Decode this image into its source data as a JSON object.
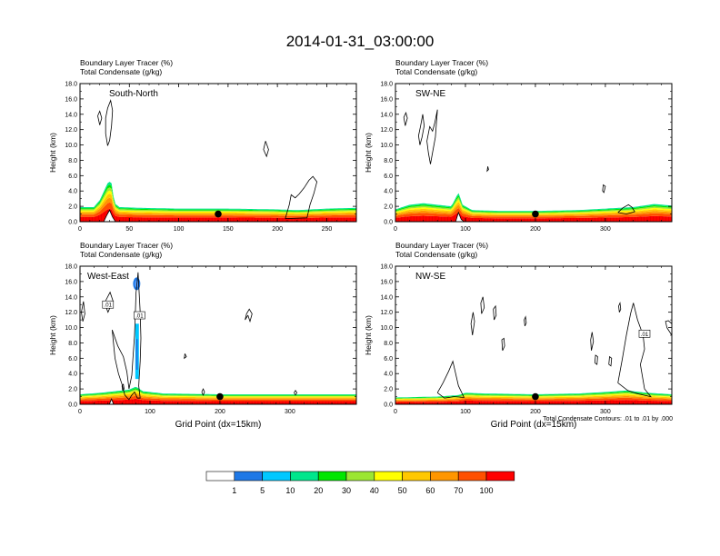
{
  "title": "2014-01-31_03:00:00",
  "colors": {
    "fill_levels": [
      "#ffffff",
      "#1e78e6",
      "#00c8ff",
      "#00e68c",
      "#00e600",
      "#9be632",
      "#ffff00",
      "#ffc800",
      "#ff9600",
      "#ff5000",
      "#ff0000"
    ],
    "frame": "#000000",
    "contour": "#000000"
  },
  "colorbar": {
    "labels": [
      "1",
      "5",
      "10",
      "20",
      "30",
      "40",
      "50",
      "60",
      "70",
      "100"
    ]
  },
  "contour_note": "Total Condensate Contours: .01 to .01 by .000",
  "chart_data": [
    {
      "type": "heatmap",
      "id": "south-north",
      "label": "South-North",
      "subtitle1": "Boundary Layer Tracer   (%)",
      "subtitle2": "Total Condensate   (g/kg)",
      "ylabel": "Height (km)",
      "xlabel": "",
      "xlim": [
        0,
        280
      ],
      "ylim": [
        0,
        18
      ],
      "xticks": [
        0,
        50,
        100,
        150,
        200,
        250
      ],
      "yticks": [
        "0.0",
        "2.0",
        "4.0",
        "6.0",
        "8.0",
        "10.0",
        "12.0",
        "14.0",
        "16.0",
        "18.0"
      ],
      "marker": {
        "x": 140,
        "y": 1.0
      },
      "terrain": [
        [
          0,
          0
        ],
        [
          24,
          0
        ],
        [
          27,
          0.8
        ],
        [
          30,
          1.5
        ],
        [
          33,
          0.6
        ],
        [
          36,
          0
        ],
        [
          280,
          0
        ]
      ],
      "profile": [
        [
          0,
          1.9
        ],
        [
          14,
          1.9
        ],
        [
          20,
          2.8
        ],
        [
          25,
          4.2
        ],
        [
          29,
          5.3
        ],
        [
          32,
          5.0
        ],
        [
          35,
          2.4
        ],
        [
          40,
          1.9
        ],
        [
          60,
          1.8
        ],
        [
          100,
          1.7
        ],
        [
          150,
          1.7
        ],
        [
          200,
          1.6
        ],
        [
          220,
          1.5
        ],
        [
          250,
          1.7
        ],
        [
          280,
          1.8
        ]
      ],
      "contours": [
        [
          [
            18,
            13.8
          ],
          [
            20,
            12.6
          ],
          [
            22,
            13.5
          ],
          [
            20,
            14.4
          ],
          [
            18,
            13.8
          ]
        ],
        [
          [
            28,
            9.9
          ],
          [
            26,
            11.5
          ],
          [
            26,
            13.5
          ],
          [
            28,
            14.8
          ],
          [
            31,
            15.8
          ],
          [
            33,
            14.5
          ],
          [
            32,
            12.5
          ],
          [
            30,
            10.6
          ],
          [
            28,
            9.9
          ]
        ],
        [
          [
            188,
            10.5
          ],
          [
            186,
            9.4
          ],
          [
            189,
            8.5
          ],
          [
            191,
            9.4
          ],
          [
            188,
            10.5
          ]
        ],
        [
          [
            208,
            0.4
          ],
          [
            212,
            2.2
          ],
          [
            214,
            3.5
          ],
          [
            218,
            3.1
          ],
          [
            222,
            3.6
          ],
          [
            227,
            4.4
          ],
          [
            232,
            5.4
          ],
          [
            236,
            5.9
          ],
          [
            240,
            5.2
          ],
          [
            237,
            3.7
          ],
          [
            233,
            2.2
          ],
          [
            230,
            0.5
          ],
          [
            208,
            0.4
          ]
        ]
      ],
      "boxes": []
    },
    {
      "type": "heatmap",
      "id": "sw-ne",
      "label": "SW-NE",
      "subtitle1": "Boundary Layer Tracer   (%)",
      "subtitle2": "Total Condensate   (g/kg)",
      "ylabel": "Height (km)",
      "xlabel": "",
      "xlim": [
        0,
        395
      ],
      "ylim": [
        0,
        18
      ],
      "xticks": [
        0,
        100,
        200,
        300
      ],
      "yticks": [
        "0.0",
        "2.0",
        "4.0",
        "6.0",
        "8.0",
        "10.0",
        "12.0",
        "14.0",
        "16.0",
        "18.0"
      ],
      "marker": {
        "x": 200,
        "y": 1.0
      },
      "terrain": [
        [
          0,
          0
        ],
        [
          86,
          0
        ],
        [
          90,
          1.2
        ],
        [
          94,
          0.3
        ],
        [
          98,
          0
        ],
        [
          395,
          0
        ]
      ],
      "profile": [
        [
          0,
          1.6
        ],
        [
          20,
          2.2
        ],
        [
          40,
          2.4
        ],
        [
          60,
          2.2
        ],
        [
          80,
          2.0
        ],
        [
          90,
          3.8
        ],
        [
          96,
          2.2
        ],
        [
          110,
          1.5
        ],
        [
          150,
          1.4
        ],
        [
          200,
          1.4
        ],
        [
          260,
          1.5
        ],
        [
          300,
          1.7
        ],
        [
          340,
          1.9
        ],
        [
          370,
          2.3
        ],
        [
          395,
          2.1
        ]
      ],
      "contours": [
        [
          [
            14,
            12.5
          ],
          [
            12,
            13.6
          ],
          [
            15,
            14.2
          ],
          [
            17,
            13.5
          ],
          [
            14,
            12.5
          ]
        ],
        [
          [
            35,
            10.0
          ],
          [
            33,
            11.2
          ],
          [
            36,
            12.5
          ],
          [
            39,
            14.0
          ],
          [
            41,
            12.5
          ],
          [
            38,
            11.0
          ],
          [
            35,
            10.0
          ]
        ],
        [
          [
            47,
            9.0
          ],
          [
            45,
            10.5
          ],
          [
            49,
            12.4
          ],
          [
            53,
            11.8
          ],
          [
            56,
            12.8
          ],
          [
            60,
            14.6
          ],
          [
            57,
            11.0
          ],
          [
            53,
            9.0
          ],
          [
            50,
            7.5
          ],
          [
            47,
            9.0
          ]
        ],
        [
          [
            132,
            7.2
          ],
          [
            131,
            6.6
          ],
          [
            133,
            6.8
          ],
          [
            132,
            7.2
          ]
        ],
        [
          [
            296,
            4.0
          ],
          [
            297,
            4.8
          ],
          [
            300,
            4.6
          ],
          [
            298,
            3.8
          ],
          [
            296,
            4.0
          ]
        ],
        [
          [
            318,
            1.2
          ],
          [
            325,
            1.8
          ],
          [
            333,
            2.2
          ],
          [
            338,
            1.9
          ],
          [
            342,
            1.3
          ],
          [
            330,
            1.0
          ],
          [
            318,
            1.2
          ]
        ]
      ],
      "boxes": []
    },
    {
      "type": "heatmap",
      "id": "west-east",
      "label": "West-East",
      "subtitle1": "Boundary Layer Tracer   (%)",
      "subtitle2": "Total Condensate   (g/kg)",
      "ylabel": "Height (km)",
      "xlabel": "Grid Point (dx=15km)",
      "xlim": [
        0,
        395
      ],
      "ylim": [
        0,
        18
      ],
      "xticks": [
        0,
        100,
        200,
        300
      ],
      "yticks": [
        "0.0",
        "2.0",
        "4.0",
        "6.0",
        "8.0",
        "10.0",
        "12.0",
        "14.0",
        "16.0",
        "18.0"
      ],
      "marker": {
        "x": 200,
        "y": 1.0
      },
      "terrain": [
        [
          0,
          0
        ],
        [
          42,
          0
        ],
        [
          45,
          0.7
        ],
        [
          48,
          0
        ],
        [
          395,
          0
        ]
      ],
      "profile": [
        [
          0,
          1.3
        ],
        [
          30,
          1.5
        ],
        [
          50,
          1.7
        ],
        [
          70,
          1.9
        ],
        [
          80,
          2.3
        ],
        [
          90,
          1.7
        ],
        [
          120,
          1.4
        ],
        [
          200,
          1.3
        ],
        [
          300,
          1.3
        ],
        [
          395,
          1.3
        ]
      ],
      "contours": [
        [
          [
            2,
            12.0
          ],
          [
            4,
            10.8
          ],
          [
            7,
            11.8
          ],
          [
            5,
            13.4
          ],
          [
            2,
            12.0
          ]
        ],
        [
          [
            35,
            13.2
          ],
          [
            40,
            12.0
          ],
          [
            47,
            13.5
          ],
          [
            43,
            14.6
          ],
          [
            35,
            13.2
          ]
        ],
        [
          [
            46,
            9.7
          ],
          [
            54,
            7.6
          ],
          [
            62,
            6.2
          ],
          [
            67,
            4.2
          ],
          [
            70,
            2.0
          ],
          [
            74,
            3.8
          ],
          [
            76,
            6.5
          ],
          [
            78,
            9.0
          ],
          [
            79,
            11.6
          ],
          [
            80,
            14.5
          ],
          [
            83,
            17.2
          ],
          [
            84,
            15.6
          ],
          [
            86,
            12.0
          ],
          [
            87,
            8.6
          ],
          [
            86,
            5.6
          ],
          [
            84,
            2.4
          ],
          [
            86,
            0.8
          ],
          [
            82,
            0.8
          ],
          [
            78,
            1.6
          ],
          [
            74,
            1.2
          ],
          [
            70,
            0.6
          ],
          [
            64,
            1.2
          ],
          [
            60,
            2.6
          ],
          [
            55,
            4.0
          ],
          [
            50,
            6.0
          ],
          [
            46,
            9.7
          ]
        ],
        [
          [
            61,
            1.8
          ],
          [
            60,
            2.4
          ],
          [
            62,
            2.6
          ],
          [
            63,
            2.0
          ],
          [
            61,
            1.8
          ]
        ],
        [
          [
            150,
            6.6
          ],
          [
            149,
            6.0
          ],
          [
            152,
            6.2
          ],
          [
            150,
            6.6
          ]
        ],
        [
          [
            240,
            11.6
          ],
          [
            236,
            11.0
          ],
          [
            238,
            11.8
          ],
          [
            242,
            12.4
          ],
          [
            246,
            11.8
          ],
          [
            243,
            10.8
          ],
          [
            240,
            11.6
          ]
        ],
        [
          [
            174,
            1.6
          ],
          [
            176,
            2.0
          ],
          [
            178,
            1.6
          ],
          [
            176,
            1.2
          ],
          [
            174,
            1.6
          ]
        ],
        [
          [
            306,
            1.5
          ],
          [
            308,
            1.8
          ],
          [
            310,
            1.5
          ],
          [
            308,
            1.2
          ],
          [
            306,
            1.5
          ]
        ]
      ],
      "boxes": [
        {
          "x": 40,
          "y": 13.0,
          "text": ".01"
        },
        {
          "x": 85,
          "y": 11.6,
          "text": ".01"
        }
      ]
    },
    {
      "type": "heatmap",
      "id": "nw-se",
      "label": "NW-SE",
      "subtitle1": "Boundary Layer Tracer   (%)",
      "subtitle2": "Total Condensate   (g/kg)",
      "ylabel": "Height (km)",
      "xlabel": "Grid Point (dx=15km)",
      "xlim": [
        0,
        395
      ],
      "ylim": [
        0,
        18
      ],
      "xticks": [
        0,
        100,
        200,
        300
      ],
      "yticks": [
        "0.0",
        "2.0",
        "4.0",
        "6.0",
        "8.0",
        "10.0",
        "12.0",
        "14.0",
        "16.0",
        "18.0"
      ],
      "marker": {
        "x": 200,
        "y": 1.0
      },
      "terrain": [
        [
          0,
          0
        ],
        [
          395,
          0
        ]
      ],
      "profile": [
        [
          0,
          0.9
        ],
        [
          60,
          1.0
        ],
        [
          90,
          1.2
        ],
        [
          100,
          1.5
        ],
        [
          130,
          1.4
        ],
        [
          200,
          1.3
        ],
        [
          260,
          1.4
        ],
        [
          300,
          1.6
        ],
        [
          330,
          1.8
        ],
        [
          360,
          1.5
        ],
        [
          395,
          1.3
        ]
      ],
      "contours": [
        [
          [
            60,
            1.5
          ],
          [
            68,
            2.8
          ],
          [
            76,
            4.3
          ],
          [
            82,
            5.6
          ],
          [
            90,
            2.4
          ],
          [
            98,
            0.9
          ],
          [
            84,
            1.0
          ],
          [
            70,
            0.8
          ],
          [
            60,
            1.5
          ]
        ],
        [
          [
            110,
            9.0
          ],
          [
            108,
            10.5
          ],
          [
            111,
            12.0
          ],
          [
            113,
            10.8
          ],
          [
            110,
            9.0
          ]
        ],
        [
          [
            123,
            11.8
          ],
          [
            122,
            13.2
          ],
          [
            125,
            14.0
          ],
          [
            127,
            12.6
          ],
          [
            123,
            11.8
          ]
        ],
        [
          [
            141,
            11.0
          ],
          [
            140,
            12.4
          ],
          [
            143,
            12.8
          ],
          [
            144,
            11.6
          ],
          [
            141,
            11.0
          ]
        ],
        [
          [
            153,
            7.0
          ],
          [
            152,
            8.4
          ],
          [
            155,
            8.6
          ],
          [
            156,
            7.6
          ],
          [
            153,
            7.0
          ]
        ],
        [
          [
            185,
            10.2
          ],
          [
            184,
            11.0
          ],
          [
            186,
            11.4
          ],
          [
            187,
            10.6
          ],
          [
            185,
            10.2
          ]
        ],
        [
          [
            280,
            7.0
          ],
          [
            279,
            8.4
          ],
          [
            281,
            9.4
          ],
          [
            283,
            8.2
          ],
          [
            280,
            7.0
          ]
        ],
        [
          [
            285,
            5.4
          ],
          [
            286,
            6.4
          ],
          [
            289,
            6.2
          ],
          [
            288,
            5.2
          ],
          [
            285,
            5.4
          ]
        ],
        [
          [
            305,
            5.2
          ],
          [
            306,
            6.2
          ],
          [
            309,
            6.0
          ],
          [
            308,
            5.0
          ],
          [
            305,
            5.2
          ]
        ],
        [
          [
            320,
            12.0
          ],
          [
            319,
            12.8
          ],
          [
            321,
            13.2
          ],
          [
            322,
            12.4
          ],
          [
            320,
            12.0
          ]
        ],
        [
          [
            318,
            2.8
          ],
          [
            324,
            5.8
          ],
          [
            330,
            9.0
          ],
          [
            336,
            11.8
          ],
          [
            340,
            13.2
          ],
          [
            346,
            11.0
          ],
          [
            354,
            9.0
          ],
          [
            356,
            7.2
          ],
          [
            350,
            5.2
          ],
          [
            356,
            2.0
          ],
          [
            365,
            1.0
          ],
          [
            345,
            1.4
          ],
          [
            332,
            1.8
          ],
          [
            318,
            2.8
          ]
        ],
        [
          [
            388,
            10.0
          ],
          [
            386,
            10.8
          ],
          [
            390,
            10.9
          ],
          [
            395,
            10.5
          ],
          [
            395,
            9.0
          ],
          [
            388,
            10.0
          ]
        ]
      ],
      "boxes": [
        {
          "x": 356,
          "y": 9.2,
          "text": ".01"
        }
      ]
    }
  ]
}
